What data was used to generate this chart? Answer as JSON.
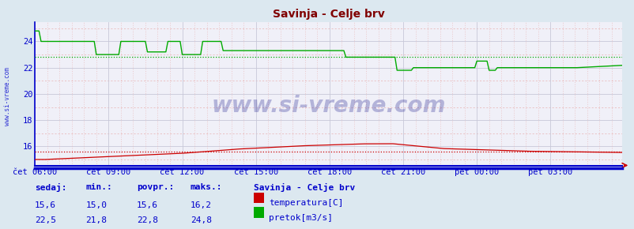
{
  "title": "Savinja - Celje brv",
  "title_color": "#800000",
  "outer_bg": "#dce8f0",
  "plot_bg": "#f0f0f8",
  "border_color": "#0000cc",
  "grid_major_color": "#c8c8d8",
  "grid_minor_color": "#e8b0b0",
  "yticks": [
    16,
    18,
    20,
    22,
    24
  ],
  "ymin": 14.5,
  "ymax": 25.5,
  "n_points": 288,
  "xtick_labels": [
    "čet 06:00",
    "čet 09:00",
    "čet 12:00",
    "čet 15:00",
    "čet 18:00",
    "čet 21:00",
    "pet 00:00",
    "pet 03:00"
  ],
  "xtick_positions": [
    0,
    36,
    72,
    108,
    144,
    180,
    216,
    252
  ],
  "temp_color": "#cc0000",
  "flow_color": "#00aa00",
  "temp_avg": 15.6,
  "flow_avg": 22.8,
  "tick_color": "#0000cc",
  "watermark": "www.si-vreme.com",
  "watermark_color": "#000080",
  "sidebar_text": "www.si-vreme.com",
  "legend_title": "Savinja - Celje brv",
  "legend_items": [
    "temperatura[C]",
    "pretok[m3/s]"
  ],
  "legend_colors": [
    "#cc0000",
    "#00aa00"
  ],
  "stats_headers": [
    "sedaj:",
    "min.:",
    "povpr.:",
    "maks.:"
  ],
  "stats_temp": [
    "15,6",
    "15,0",
    "15,6",
    "16,2"
  ],
  "stats_flow": [
    "22,5",
    "21,8",
    "22,8",
    "24,8"
  ],
  "arrow_color": "#cc0000"
}
